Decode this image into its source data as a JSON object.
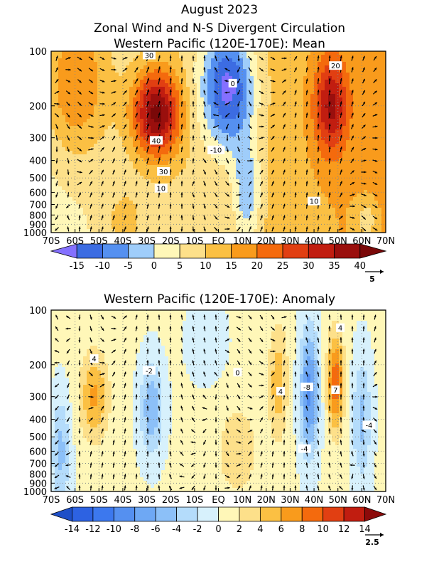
{
  "figure": {
    "title_line1": "August 2023",
    "title_line2": "Zonal Wind and N-S Divergent Circulation"
  },
  "chart_data": [
    {
      "type": "heatmap",
      "title": "Western Pacific (120E-170E): Mean",
      "xlabel": "",
      "ylabel": "",
      "x_ticks": [
        "70S",
        "60S",
        "50S",
        "40S",
        "30S",
        "20S",
        "10S",
        "EQ",
        "10N",
        "20N",
        "30N",
        "40N",
        "50N",
        "60N",
        "70N"
      ],
      "x_range": [
        -70,
        70
      ],
      "y_ticks": [
        100,
        200,
        300,
        400,
        500,
        600,
        700,
        800,
        900,
        1000
      ],
      "y_range": [
        1000,
        100
      ],
      "y_scale": "log",
      "grid": true,
      "colorbar": {
        "ticks": [
          "-15",
          "-10",
          "-5",
          "0",
          "5",
          "10",
          "15",
          "20",
          "25",
          "30",
          "35",
          "40"
        ],
        "levels": [
          -20,
          -15,
          -10,
          -5,
          0,
          5,
          10,
          15,
          20,
          25,
          30,
          35,
          40,
          45
        ],
        "colors": [
          "#8470ff",
          "#3c6ce2",
          "#5590f0",
          "#9fcdfa",
          "#fff7b8",
          "#fde08a",
          "#fbc043",
          "#f99b1c",
          "#f46a0d",
          "#e13f12",
          "#c11d10",
          "#9a0f0d",
          "#7a0808"
        ]
      },
      "reference_vector_label": "5",
      "contour_labels": [
        {
          "x": -29,
          "p": 105,
          "v": "30"
        },
        {
          "x": 6,
          "p": 150,
          "v": "0"
        },
        {
          "x": 49,
          "p": 120,
          "v": "20"
        },
        {
          "x": -26,
          "p": 310,
          "v": "40"
        },
        {
          "x": -1,
          "p": 350,
          "v": "-10"
        },
        {
          "x": -23,
          "p": 460,
          "v": "30"
        },
        {
          "x": -24,
          "p": 570,
          "v": "10"
        },
        {
          "x": 40,
          "p": 670,
          "v": "10"
        }
      ]
    },
    {
      "type": "heatmap",
      "title": "Western Pacific (120E-170E): Anomaly",
      "xlabel": "",
      "ylabel": "",
      "x_ticks": [
        "70S",
        "60S",
        "50S",
        "40S",
        "30S",
        "20S",
        "10S",
        "EQ",
        "10N",
        "20N",
        "30N",
        "40N",
        "50N",
        "60N",
        "70N"
      ],
      "x_range": [
        -70,
        70
      ],
      "y_ticks": [
        100,
        200,
        300,
        400,
        500,
        600,
        700,
        800,
        900,
        1000
      ],
      "y_range": [
        1000,
        100
      ],
      "y_scale": "log",
      "grid": true,
      "colorbar": {
        "ticks": [
          "-14",
          "-12",
          "-10",
          "-8",
          "-6",
          "-4",
          "-2",
          "0",
          "2",
          "4",
          "6",
          "8",
          "10",
          "12",
          "14"
        ],
        "levels": [
          -16,
          -14,
          -12,
          -10,
          -8,
          -6,
          -4,
          -2,
          0,
          2,
          4,
          6,
          8,
          10,
          12,
          14,
          16
        ],
        "colors": [
          "#1e4fc8",
          "#2d62e2",
          "#3c78ee",
          "#5590f0",
          "#6ea8f4",
          "#8cc0f8",
          "#b4dcfb",
          "#d7f1fc",
          "#fff7b8",
          "#fde08a",
          "#fbc043",
          "#f99b1c",
          "#f46a0d",
          "#e13f12",
          "#c11d10",
          "#8c0a0a"
        ]
      },
      "reference_vector_label": "2.5",
      "contour_labels": [
        {
          "x": 51,
          "p": 125,
          "v": "4"
        },
        {
          "x": -52,
          "p": 185,
          "v": "4"
        },
        {
          "x": -29,
          "p": 215,
          "v": "-2"
        },
        {
          "x": 8,
          "p": 220,
          "v": "0"
        },
        {
          "x": 26,
          "p": 280,
          "v": "4"
        },
        {
          "x": 37,
          "p": 265,
          "v": "-8"
        },
        {
          "x": 49,
          "p": 275,
          "v": "7"
        },
        {
          "x": 63,
          "p": 430,
          "v": "-4"
        },
        {
          "x": 36,
          "p": 580,
          "v": "-4"
        }
      ]
    }
  ]
}
